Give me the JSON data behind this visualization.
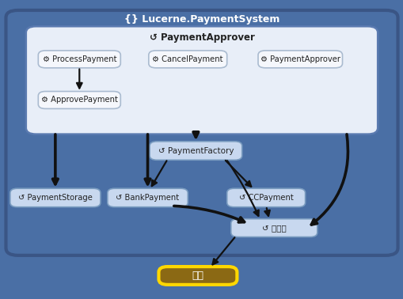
{
  "title": "{} Lucerne.PaymentSystem",
  "outer_bg": "#4a6fa5",
  "inner_bg": "#e8eef8",
  "node_bg_white": "#f5f7fc",
  "node_bg_blue": "#c8d8ef",
  "node_border_white": "#aabbd0",
  "node_border_blue": "#7a9cc0",
  "ext_bg": "#8b6914",
  "ext_border": "#ffd700",
  "arrow_color": "#111111",
  "icon_cycle": "↺",
  "icon_gear": "⚙",
  "label_ProcessPayment": "ProcessPayment",
  "label_CancelPayment": "CancelPayment",
  "label_PaymentApproverNode": "PaymentApprover",
  "label_ApprovePayment": "ApprovePayment",
  "label_PaymentApproverHeader": "PaymentApprover",
  "label_PaymentFactory": "PaymentFactory",
  "label_PaymentStorage": "PaymentStorage",
  "label_BankPayment": "BankPayment",
  "label_CCPayment": "CCPayment",
  "label_Shiharai": "支払い",
  "label_Gaibu": "外部",
  "title_text": "{} Lucerne.PaymentSystem"
}
